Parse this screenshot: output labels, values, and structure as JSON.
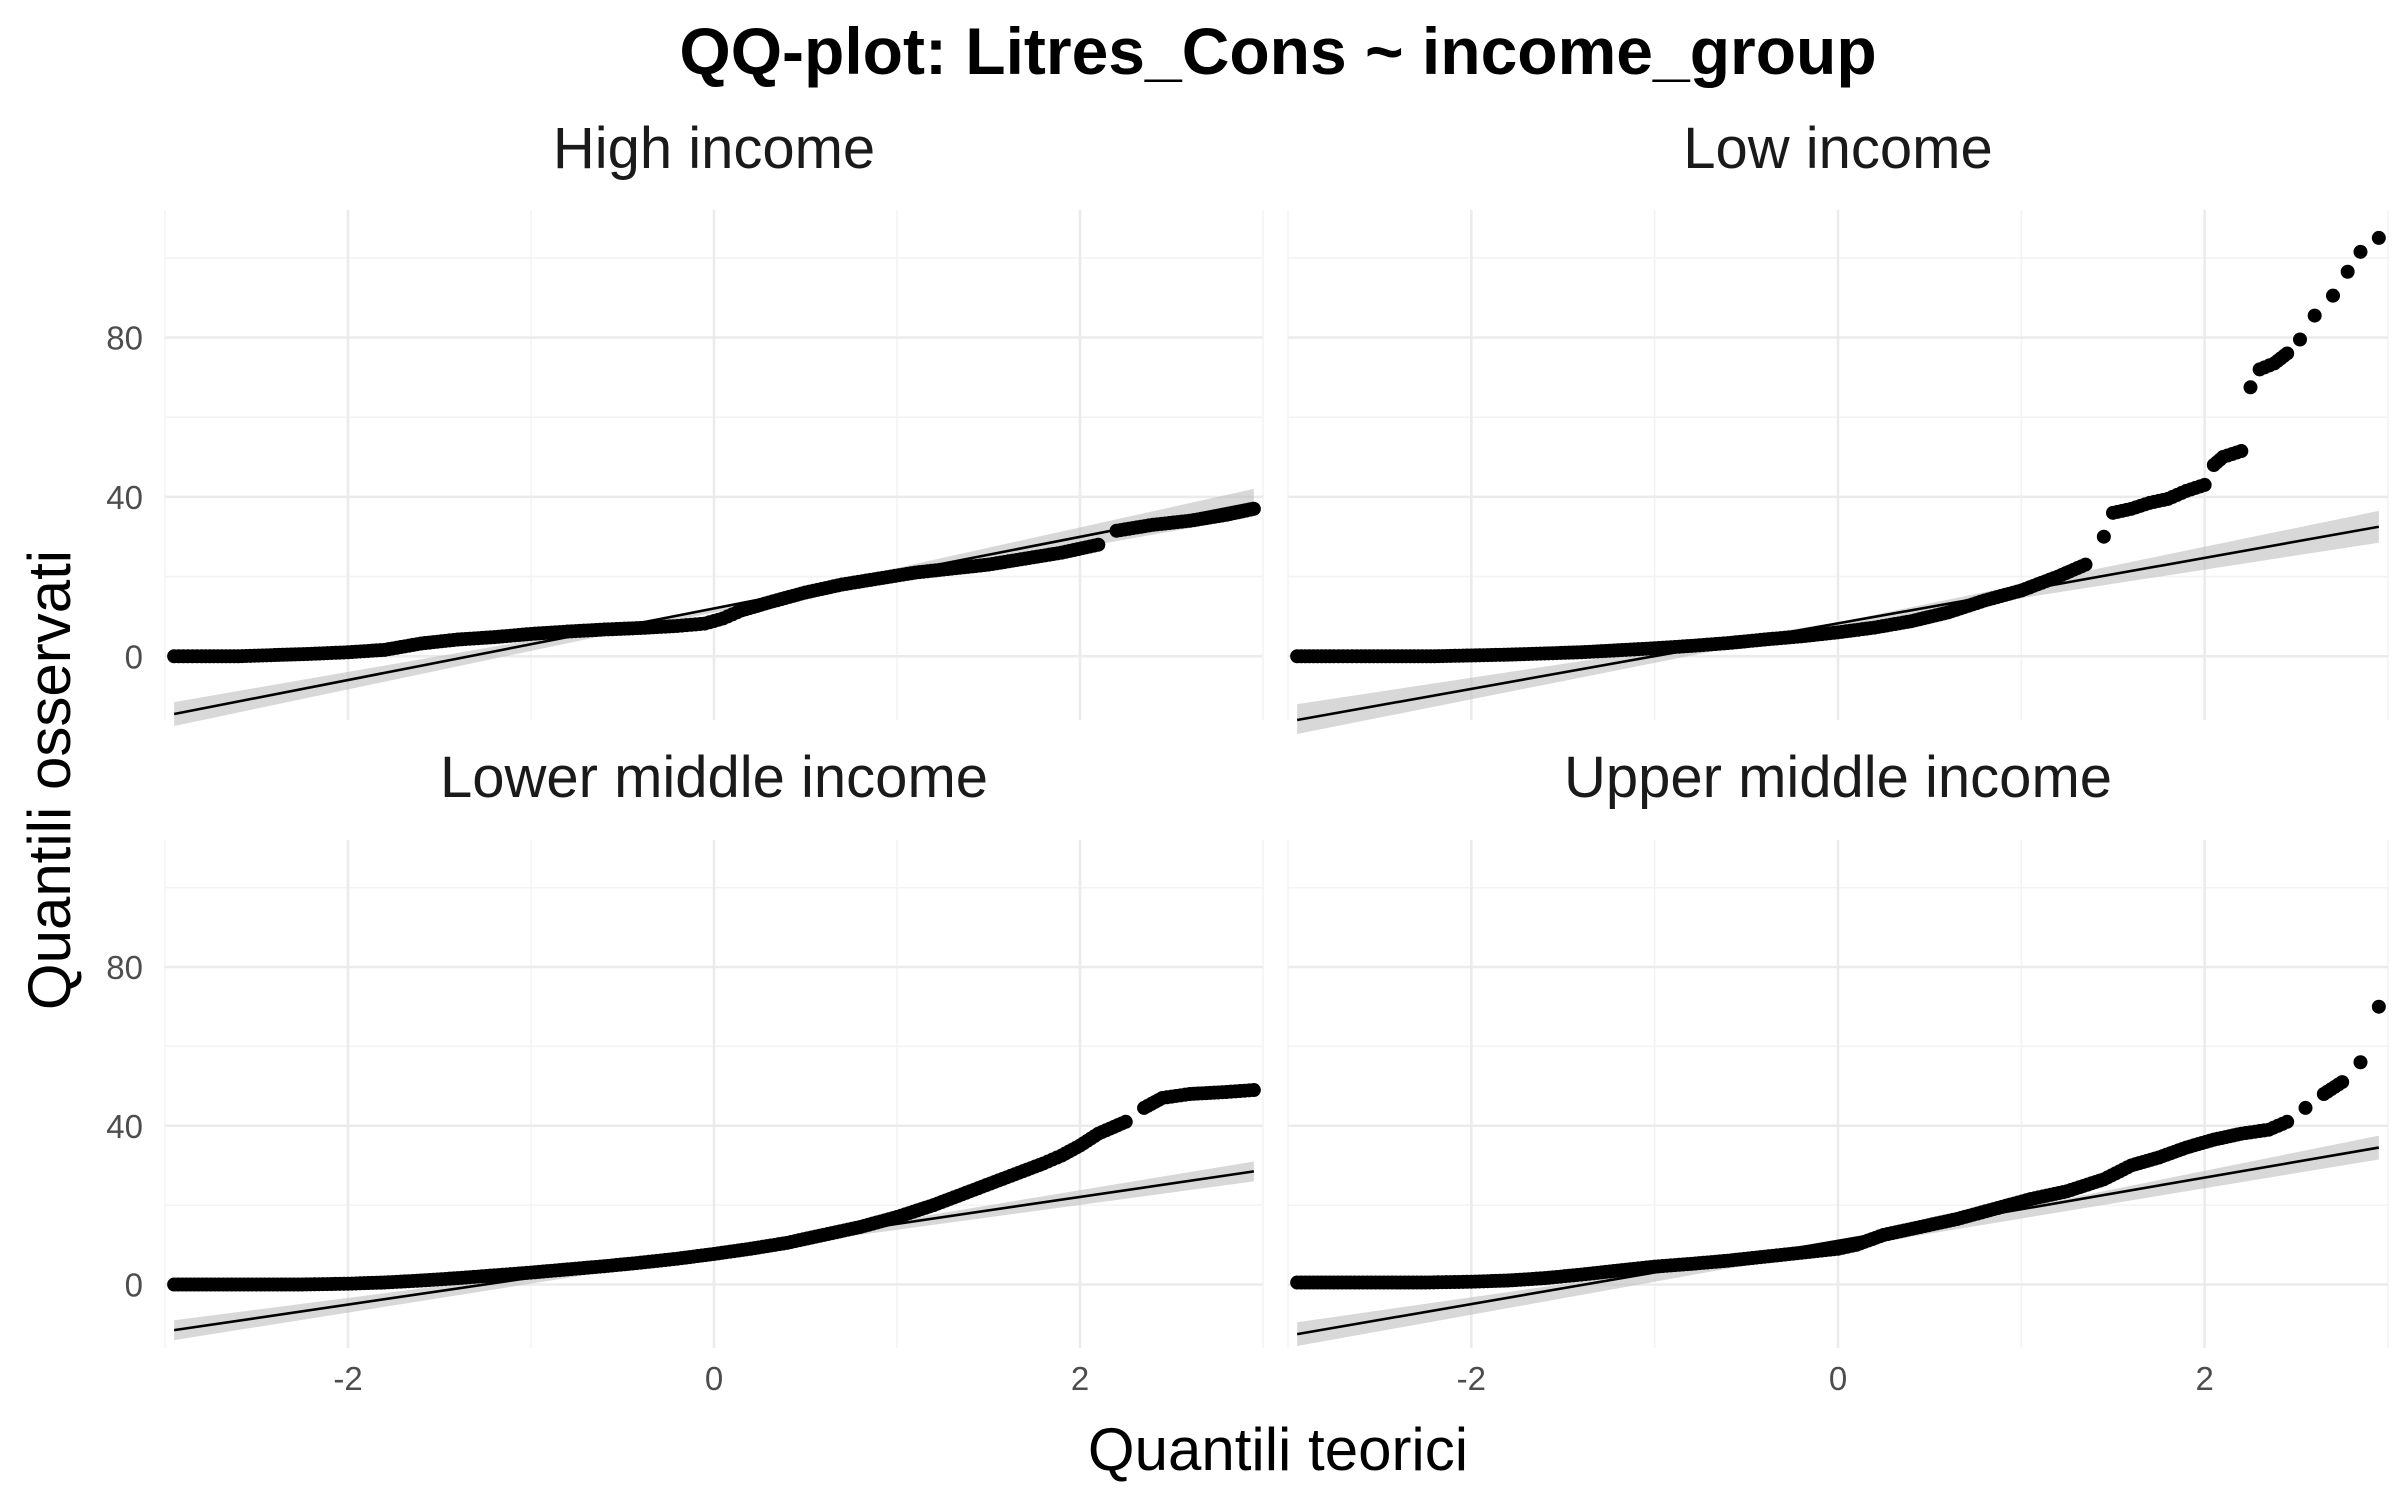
{
  "chart_data": {
    "type": "scatter",
    "title": "QQ-plot: Litres_Cons ~ income_group",
    "xlabel": "Quantili teorici",
    "ylabel": "Quantili osservati",
    "xlim": [
      -3.0,
      3.0
    ],
    "ylim": [
      -16,
      112
    ],
    "x_ticks": [
      -2,
      0,
      2
    ],
    "y_ticks": [
      0,
      40,
      80
    ],
    "x_tick_labels": [
      "-2",
      "0",
      "2"
    ],
    "y_tick_labels": [
      "0",
      "40",
      "80"
    ],
    "grid": true,
    "point_color": "#000000",
    "line_color": "#000000",
    "band_color": "#bebebe",
    "panels": [
      {
        "name": "High income",
        "reference_line": {
          "x": [
            -2.95,
            2.95
          ],
          "y": [
            -14.5,
            38.5
          ]
        },
        "band": {
          "x": [
            -2.95,
            0,
            2.95
          ],
          "upper": [
            -11.5,
            12.0,
            42.0
          ],
          "lower": [
            -17.5,
            11.0,
            35.0
          ]
        },
        "points": [
          [
            -2.95,
            0
          ],
          [
            -2.8,
            0
          ],
          [
            -2.6,
            0
          ],
          [
            -2.4,
            0.3
          ],
          [
            -2.2,
            0.6
          ],
          [
            -2.0,
            1.0
          ],
          [
            -1.8,
            1.6
          ],
          [
            -1.6,
            3.2
          ],
          [
            -1.4,
            4.2
          ],
          [
            -1.2,
            4.8
          ],
          [
            -1.0,
            5.6
          ],
          [
            -0.8,
            6.2
          ],
          [
            -0.6,
            6.7
          ],
          [
            -0.4,
            7.1
          ],
          [
            -0.2,
            7.6
          ],
          [
            -0.05,
            8.2
          ],
          [
            0.05,
            9.5
          ],
          [
            0.15,
            11.5
          ],
          [
            0.3,
            13.5
          ],
          [
            0.5,
            16.0
          ],
          [
            0.7,
            18.0
          ],
          [
            0.9,
            19.5
          ],
          [
            1.1,
            21.0
          ],
          [
            1.3,
            22.0
          ],
          [
            1.5,
            23.0
          ],
          [
            1.7,
            24.5
          ],
          [
            1.9,
            26.0
          ],
          [
            2.1,
            28.0
          ],
          [
            2.2,
            31.5
          ],
          [
            2.4,
            33.0
          ],
          [
            2.6,
            34.0
          ],
          [
            2.8,
            35.5
          ],
          [
            2.95,
            37.0
          ]
        ]
      },
      {
        "name": "Low income",
        "reference_line": {
          "x": [
            -2.95,
            2.95
          ],
          "y": [
            -16.0,
            32.5
          ]
        },
        "band": {
          "x": [
            -2.95,
            0,
            2.95
          ],
          "upper": [
            -12.0,
            8.5,
            36.5
          ],
          "lower": [
            -19.5,
            7.5,
            28.5
          ]
        },
        "points": [
          [
            -2.95,
            0
          ],
          [
            -2.75,
            0
          ],
          [
            -2.6,
            0
          ],
          [
            -2.4,
            0
          ],
          [
            -2.2,
            0
          ],
          [
            -2.0,
            0.2
          ],
          [
            -1.8,
            0.4
          ],
          [
            -1.6,
            0.7
          ],
          [
            -1.4,
            1.0
          ],
          [
            -1.2,
            1.5
          ],
          [
            -1.0,
            2.0
          ],
          [
            -0.8,
            2.6
          ],
          [
            -0.6,
            3.3
          ],
          [
            -0.4,
            4.2
          ],
          [
            -0.2,
            5.0
          ],
          [
            0.0,
            6.0
          ],
          [
            0.2,
            7.2
          ],
          [
            0.4,
            8.8
          ],
          [
            0.6,
            11.0
          ],
          [
            0.8,
            14.0
          ],
          [
            1.0,
            16.5
          ],
          [
            1.2,
            20.0
          ],
          [
            1.35,
            23.0
          ],
          [
            1.45,
            30.0
          ],
          [
            1.5,
            36.0
          ],
          [
            1.6,
            37.0
          ],
          [
            1.7,
            38.5
          ],
          [
            1.8,
            39.5
          ],
          [
            1.9,
            41.5
          ],
          [
            2.0,
            43.0
          ],
          [
            2.05,
            48.0
          ],
          [
            2.1,
            50.0
          ],
          [
            2.2,
            51.5
          ],
          [
            2.25,
            67.5
          ],
          [
            2.3,
            72.0
          ],
          [
            2.38,
            73.5
          ],
          [
            2.45,
            76.0
          ],
          [
            2.52,
            79.5
          ],
          [
            2.6,
            85.5
          ],
          [
            2.7,
            90.5
          ],
          [
            2.78,
            96.5
          ],
          [
            2.85,
            101.5
          ],
          [
            2.95,
            105.0
          ]
        ]
      },
      {
        "name": "Lower middle income",
        "reference_line": {
          "x": [
            -2.95,
            2.95
          ],
          "y": [
            -11.5,
            28.5
          ]
        },
        "band": {
          "x": [
            -2.95,
            0,
            2.95
          ],
          "upper": [
            -9.0,
            8.5,
            31.0
          ],
          "lower": [
            -14.0,
            7.5,
            26.0
          ]
        },
        "points": [
          [
            -2.95,
            0
          ],
          [
            -2.75,
            0
          ],
          [
            -2.5,
            0
          ],
          [
            -2.25,
            0
          ],
          [
            -2.0,
            0.2
          ],
          [
            -1.8,
            0.5
          ],
          [
            -1.6,
            1.0
          ],
          [
            -1.4,
            1.6
          ],
          [
            -1.2,
            2.3
          ],
          [
            -1.0,
            3.0
          ],
          [
            -0.8,
            3.8
          ],
          [
            -0.6,
            4.6
          ],
          [
            -0.4,
            5.5
          ],
          [
            -0.2,
            6.5
          ],
          [
            0.0,
            7.7
          ],
          [
            0.2,
            9.0
          ],
          [
            0.4,
            10.5
          ],
          [
            0.6,
            12.5
          ],
          [
            0.8,
            14.5
          ],
          [
            1.0,
            17.0
          ],
          [
            1.2,
            20.0
          ],
          [
            1.4,
            23.5
          ],
          [
            1.6,
            27.0
          ],
          [
            1.8,
            30.5
          ],
          [
            1.9,
            32.5
          ],
          [
            2.0,
            35.0
          ],
          [
            2.1,
            38.0
          ],
          [
            2.25,
            41.0
          ],
          [
            2.35,
            44.5
          ],
          [
            2.45,
            47.0
          ],
          [
            2.6,
            48.0
          ],
          [
            2.8,
            48.5
          ],
          [
            2.95,
            49.0
          ]
        ]
      },
      {
        "name": "Upper middle income",
        "reference_line": {
          "x": [
            -2.95,
            2.95
          ],
          "y": [
            -12.5,
            34.5
          ]
        },
        "band": {
          "x": [
            -2.95,
            0,
            2.95
          ],
          "upper": [
            -9.5,
            10.0,
            37.5
          ],
          "lower": [
            -15.5,
            9.0,
            31.5
          ]
        },
        "points": [
          [
            -2.95,
            0.5
          ],
          [
            -2.75,
            0.5
          ],
          [
            -2.5,
            0.5
          ],
          [
            -2.25,
            0.5
          ],
          [
            -2.0,
            0.7
          ],
          [
            -1.8,
            1.0
          ],
          [
            -1.6,
            1.6
          ],
          [
            -1.4,
            2.5
          ],
          [
            -1.2,
            3.5
          ],
          [
            -1.0,
            4.5
          ],
          [
            -0.8,
            5.2
          ],
          [
            -0.6,
            6.0
          ],
          [
            -0.4,
            7.0
          ],
          [
            -0.2,
            8.0
          ],
          [
            0.0,
            9.0
          ],
          [
            0.1,
            10.0
          ],
          [
            0.25,
            12.5
          ],
          [
            0.45,
            14.5
          ],
          [
            0.65,
            16.5
          ],
          [
            0.85,
            19.0
          ],
          [
            1.05,
            21.5
          ],
          [
            1.25,
            23.5
          ],
          [
            1.45,
            26.5
          ],
          [
            1.6,
            30.0
          ],
          [
            1.75,
            32.0
          ],
          [
            1.9,
            34.5
          ],
          [
            2.05,
            36.5
          ],
          [
            2.2,
            38.0
          ],
          [
            2.35,
            39.0
          ],
          [
            2.45,
            41.0
          ],
          [
            2.55,
            44.5
          ],
          [
            2.65,
            48.0
          ],
          [
            2.75,
            51.0
          ],
          [
            2.85,
            56.0
          ],
          [
            2.95,
            70.0
          ]
        ]
      }
    ]
  }
}
